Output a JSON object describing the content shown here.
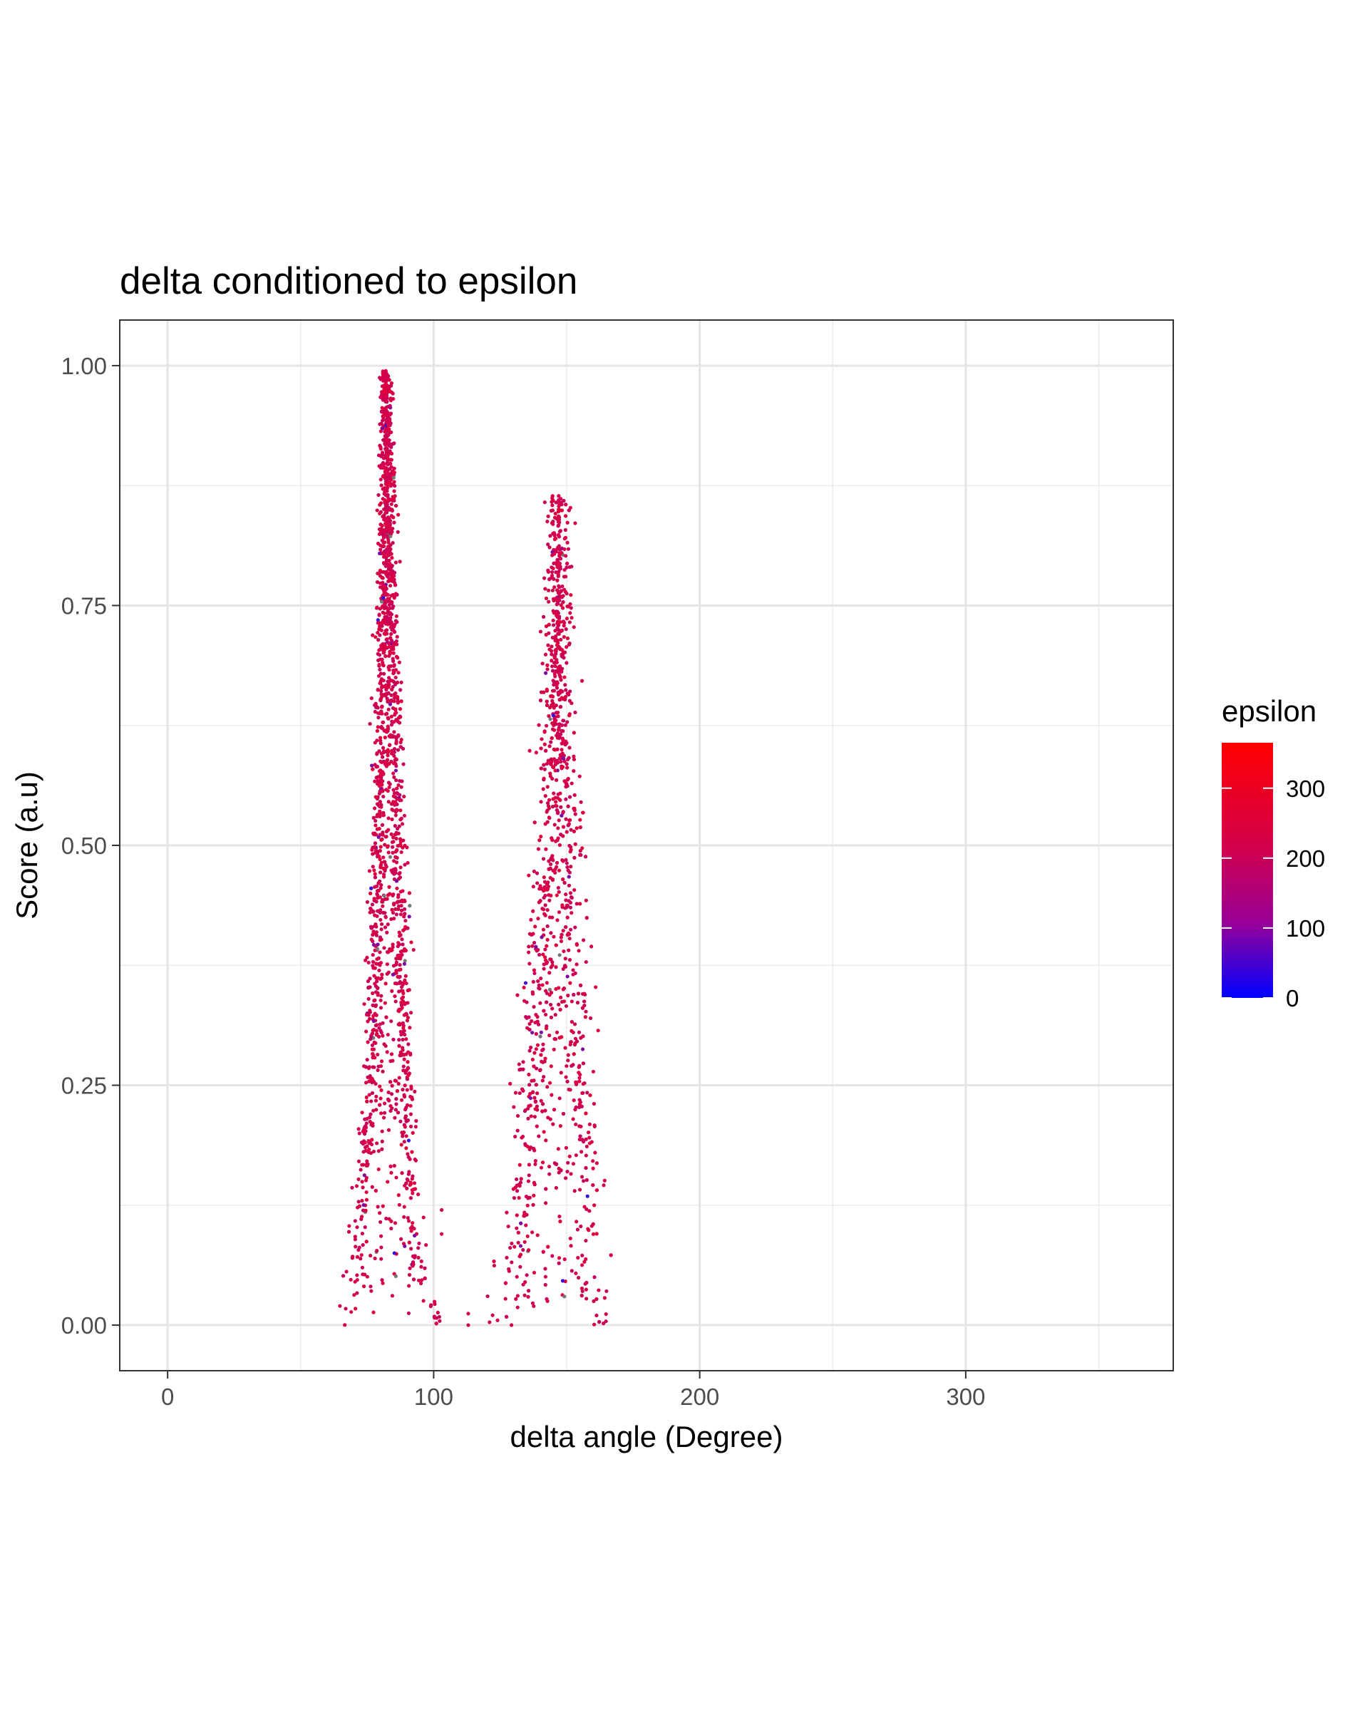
{
  "chart_data": {
    "type": "scatter",
    "title": "delta conditioned to epsilon",
    "xlabel": "delta angle (Degree)",
    "ylabel": "Score (a.u)",
    "xlim": [
      -18,
      378
    ],
    "ylim": [
      -0.0475,
      1.0475
    ],
    "x_ticks": [
      0,
      100,
      200,
      300
    ],
    "x_tick_labels": [
      "0",
      "100",
      "200",
      "300"
    ],
    "x_minor_ticks": [
      50,
      150,
      250,
      350
    ],
    "y_ticks": [
      0,
      0.25,
      0.5,
      0.75,
      1.0
    ],
    "y_tick_labels": [
      "0.00",
      "0.25",
      "0.50",
      "0.75",
      "1.00"
    ],
    "y_minor_ticks": [
      0.125,
      0.375,
      0.625,
      0.875
    ],
    "grid": true,
    "theme": "bw",
    "color_variable": "epsilon",
    "legend": {
      "title": "epsilon",
      "position": "right",
      "range": [
        0,
        365
      ],
      "ticks": [
        0,
        100,
        200,
        300
      ],
      "tick_labels": [
        "0",
        "100",
        "200",
        "300"
      ],
      "low_color": "#0000ff",
      "high_color": "#ff0000"
    },
    "point_color_typical": "#d4004a",
    "clusters": [
      {
        "name": "peak-1",
        "peak_x": 82,
        "peak_y": 0.995,
        "left_edge": [
          [
            66,
            0.0
          ],
          [
            70,
            0.05
          ],
          [
            74,
            0.17
          ],
          [
            77,
            0.3
          ],
          [
            79,
            0.5
          ],
          [
            80.5,
            0.7
          ],
          [
            81.5,
            0.9
          ],
          [
            82,
            0.995
          ]
        ],
        "right_edge": [
          [
            82,
            0.995
          ],
          [
            83.5,
            0.9
          ],
          [
            85,
            0.7
          ],
          [
            87,
            0.5
          ],
          [
            89,
            0.3
          ],
          [
            91,
            0.17
          ],
          [
            95,
            0.05
          ],
          [
            102,
            0.0
          ]
        ],
        "outliers": [
          [
            103,
            0.12
          ],
          [
            103,
            0.095
          ],
          [
            113,
            0.012
          ],
          [
            113,
            0.0
          ]
        ]
      },
      {
        "name": "peak-2",
        "peak_x": 147,
        "peak_y": 0.865,
        "left_edge": [
          [
            128,
            0.0
          ],
          [
            131,
            0.08
          ],
          [
            134,
            0.18
          ],
          [
            138,
            0.3
          ],
          [
            141,
            0.45
          ],
          [
            144,
            0.6
          ],
          [
            146,
            0.75
          ],
          [
            147,
            0.865
          ]
        ],
        "right_edge": [
          [
            147,
            0.865
          ],
          [
            148,
            0.75
          ],
          [
            150,
            0.6
          ],
          [
            152,
            0.45
          ],
          [
            154,
            0.3
          ],
          [
            157,
            0.17
          ],
          [
            160,
            0.05
          ],
          [
            162,
            0.0
          ]
        ],
        "outliers": [
          [
            124,
            0.005
          ],
          [
            121,
            0.003
          ]
        ]
      }
    ]
  }
}
